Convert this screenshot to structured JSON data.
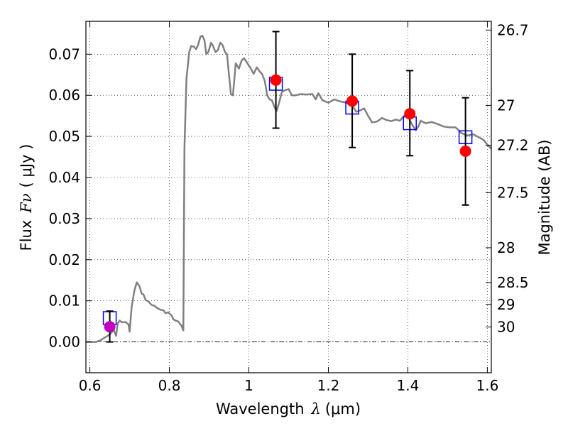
{
  "chart_data": {
    "type": "scatter",
    "xlabel": "Wavelength",
    "xlabel_symbol": "λ",
    "xlabel_unit": "(μm)",
    "ylabel": "Flux",
    "ylabel_symbol": "Fν",
    "ylabel_unit": "( μJy )",
    "y2label": "Magnitude (AB)",
    "xlim": [
      0.59,
      1.61
    ],
    "ylim": [
      -0.0075,
      0.078
    ],
    "grid": true,
    "x_ticks": [
      {
        "v": 0.6,
        "label": "0.6"
      },
      {
        "v": 0.8,
        "label": "0.8"
      },
      {
        "v": 1.0,
        "label": "1"
      },
      {
        "v": 1.2,
        "label": "1.2"
      },
      {
        "v": 1.4,
        "label": "1.4"
      },
      {
        "v": 1.6,
        "label": "1.6"
      }
    ],
    "y_ticks": [
      {
        "v": 0.0,
        "label": "0.00"
      },
      {
        "v": 0.01,
        "label": "0.01"
      },
      {
        "v": 0.02,
        "label": "0.02"
      },
      {
        "v": 0.03,
        "label": "0.03"
      },
      {
        "v": 0.04,
        "label": "0.04"
      },
      {
        "v": 0.05,
        "label": "0.05"
      },
      {
        "v": 0.06,
        "label": "0.06"
      },
      {
        "v": 0.07,
        "label": "0.07"
      }
    ],
    "y2_ticks": [
      {
        "mag": 26.7,
        "label": "26.7"
      },
      {
        "mag": 27.0,
        "label": "27"
      },
      {
        "mag": 27.2,
        "label": "27.2"
      },
      {
        "mag": 27.5,
        "label": "27.5"
      },
      {
        "mag": 28.0,
        "label": "28"
      },
      {
        "mag": 28.5,
        "label": "28.5"
      },
      {
        "mag": 29.0,
        "label": "29"
      },
      {
        "mag": 30.0,
        "label": "30"
      }
    ],
    "model_spectrum": {
      "color": "#808080",
      "points": [
        [
          0.59,
          0.0
        ],
        [
          0.615,
          0.0
        ],
        [
          0.625,
          0.0003
        ],
        [
          0.64,
          0.0012
        ],
        [
          0.65,
          0.0018
        ],
        [
          0.66,
          0.003
        ],
        [
          0.666,
          0.0015
        ],
        [
          0.67,
          0.0045
        ],
        [
          0.675,
          0.0052
        ],
        [
          0.68,
          0.0048
        ],
        [
          0.69,
          0.0048
        ],
        [
          0.697,
          0.0043
        ],
        [
          0.7,
          0.0025
        ],
        [
          0.705,
          0.0085
        ],
        [
          0.712,
          0.0125
        ],
        [
          0.718,
          0.0145
        ],
        [
          0.725,
          0.0135
        ],
        [
          0.73,
          0.0118
        ],
        [
          0.735,
          0.0115
        ],
        [
          0.74,
          0.0102
        ],
        [
          0.748,
          0.0098
        ],
        [
          0.755,
          0.009
        ],
        [
          0.762,
          0.0088
        ],
        [
          0.77,
          0.0082
        ],
        [
          0.778,
          0.0078
        ],
        [
          0.785,
          0.0077
        ],
        [
          0.79,
          0.007
        ],
        [
          0.797,
          0.0072
        ],
        [
          0.805,
          0.0065
        ],
        [
          0.81,
          0.0055
        ],
        [
          0.815,
          0.0052
        ],
        [
          0.822,
          0.005
        ],
        [
          0.83,
          0.004
        ],
        [
          0.835,
          0.0028
        ],
        [
          0.838,
          0.0472
        ],
        [
          0.843,
          0.064
        ],
        [
          0.85,
          0.0705
        ],
        [
          0.855,
          0.072
        ],
        [
          0.862,
          0.0718
        ],
        [
          0.867,
          0.0712
        ],
        [
          0.872,
          0.0722
        ],
        [
          0.878,
          0.0742
        ],
        [
          0.883,
          0.0745
        ],
        [
          0.888,
          0.0735
        ],
        [
          0.893,
          0.07
        ],
        [
          0.898,
          0.0705
        ],
        [
          0.905,
          0.0728
        ],
        [
          0.91,
          0.072
        ],
        [
          0.916,
          0.0705
        ],
        [
          0.922,
          0.071
        ],
        [
          0.928,
          0.0728
        ],
        [
          0.934,
          0.0722
        ],
        [
          0.94,
          0.0705
        ],
        [
          0.945,
          0.07
        ],
        [
          0.95,
          0.065
        ],
        [
          0.955,
          0.0602
        ],
        [
          0.96,
          0.06
        ],
        [
          0.967,
          0.0678
        ],
        [
          0.975,
          0.0665
        ],
        [
          0.982,
          0.0685
        ],
        [
          0.988,
          0.069
        ],
        [
          0.995,
          0.068
        ],
        [
          1.0,
          0.0672
        ],
        [
          1.005,
          0.0665
        ],
        [
          1.012,
          0.0652
        ],
        [
          1.02,
          0.0668
        ],
        [
          1.027,
          0.0658
        ],
        [
          1.033,
          0.0652
        ],
        [
          1.04,
          0.0635
        ],
        [
          1.046,
          0.06
        ],
        [
          1.052,
          0.059
        ],
        [
          1.058,
          0.0588
        ],
        [
          1.065,
          0.057
        ],
        [
          1.07,
          0.0562
        ],
        [
          1.077,
          0.0585
        ],
        [
          1.083,
          0.0608
        ],
        [
          1.09,
          0.0612
        ],
        [
          1.1,
          0.0615
        ],
        [
          1.108,
          0.06
        ],
        [
          1.118,
          0.06
        ],
        [
          1.13,
          0.0603
        ],
        [
          1.145,
          0.0602
        ],
        [
          1.16,
          0.0603
        ],
        [
          1.168,
          0.059
        ],
        [
          1.175,
          0.0605
        ],
        [
          1.185,
          0.0588
        ],
        [
          1.2,
          0.0582
        ],
        [
          1.215,
          0.059
        ],
        [
          1.23,
          0.0585
        ],
        [
          1.245,
          0.0582
        ],
        [
          1.26,
          0.0575
        ],
        [
          1.27,
          0.056
        ],
        [
          1.28,
          0.0563
        ],
        [
          1.29,
          0.0568
        ],
        [
          1.3,
          0.055
        ],
        [
          1.31,
          0.0534
        ],
        [
          1.322,
          0.0536
        ],
        [
          1.335,
          0.0545
        ],
        [
          1.345,
          0.054
        ],
        [
          1.358,
          0.0537
        ],
        [
          1.37,
          0.0541
        ],
        [
          1.38,
          0.0538
        ],
        [
          1.392,
          0.0552
        ],
        [
          1.4,
          0.0549
        ],
        [
          1.41,
          0.053
        ],
        [
          1.42,
          0.0515
        ],
        [
          1.427,
          0.0525
        ],
        [
          1.432,
          0.0538
        ],
        [
          1.445,
          0.0532
        ],
        [
          1.46,
          0.0535
        ],
        [
          1.475,
          0.053
        ],
        [
          1.49,
          0.0524
        ],
        [
          1.505,
          0.0522
        ],
        [
          1.52,
          0.0522
        ],
        [
          1.535,
          0.0508
        ],
        [
          1.55,
          0.0502
        ],
        [
          1.565,
          0.0505
        ],
        [
          1.578,
          0.0498
        ],
        [
          1.59,
          0.0492
        ],
        [
          1.6,
          0.048
        ],
        [
          1.61,
          0.047
        ]
      ]
    },
    "model_photometry": {
      "color": "#0000ff",
      "points": [
        [
          0.65,
          0.0058
        ],
        [
          1.068,
          0.0628
        ],
        [
          1.26,
          0.057
        ],
        [
          1.405,
          0.0532
        ],
        [
          1.545,
          0.0498
        ]
      ]
    },
    "observed": [
      {
        "x": 0.65,
        "y": 0.0037,
        "err_low": 0.0037,
        "err_high": 0.0038,
        "color": "#bf00bf"
      },
      {
        "x": 1.068,
        "y": 0.0637,
        "err_low": 0.0117,
        "err_high": 0.0118,
        "color": "#ff0000"
      },
      {
        "x": 1.26,
        "y": 0.0586,
        "err_low": 0.0113,
        "err_high": 0.0114,
        "color": "#ff0000"
      },
      {
        "x": 1.405,
        "y": 0.0555,
        "err_low": 0.0102,
        "err_high": 0.0105,
        "color": "#ff0000"
      },
      {
        "x": 1.545,
        "y": 0.0464,
        "err_low": 0.0131,
        "err_high": 0.013,
        "color": "#ff0000"
      }
    ]
  }
}
